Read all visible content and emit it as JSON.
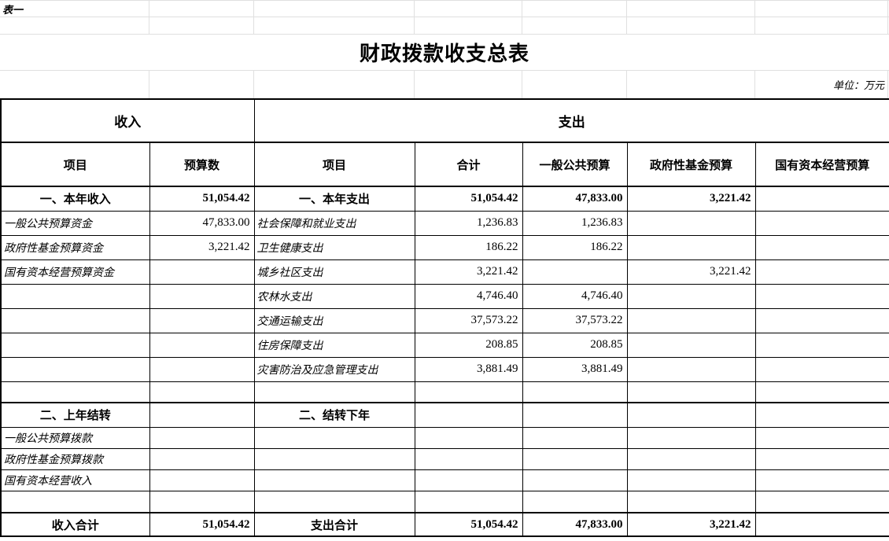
{
  "sheet": {
    "label": "表一",
    "title": "财政拨款收支总表",
    "unit_note": "单位：万元"
  },
  "table": {
    "group_headers": {
      "income": "收入",
      "expenditure": "支出"
    },
    "columns": [
      "项目",
      "预算数",
      "项目",
      "合计",
      "一般公共预算",
      "政府性基金预算",
      "国有资本经营预算"
    ],
    "rows": [
      {
        "type": "section",
        "income_item": "一、本年收入",
        "income_budget": "51,054.42",
        "expense_item": "一、本年支出",
        "total": "51,054.42",
        "general": "47,833.00",
        "fund": "3,221.42",
        "capital": ""
      },
      {
        "type": "detail",
        "income_item": "一般公共预算资金",
        "income_budget": "47,833.00",
        "expense_item": "社会保障和就业支出",
        "total": "1,236.83",
        "general": "1,236.83",
        "fund": "",
        "capital": ""
      },
      {
        "type": "detail",
        "income_item": "政府性基金预算资金",
        "income_budget": "3,221.42",
        "expense_item": "卫生健康支出",
        "total": "186.22",
        "general": "186.22",
        "fund": "",
        "capital": ""
      },
      {
        "type": "detail",
        "income_item": "国有资本经营预算资金",
        "income_budget": "",
        "expense_item": "城乡社区支出",
        "total": "3,221.42",
        "general": "",
        "fund": "3,221.42",
        "capital": ""
      },
      {
        "type": "detail",
        "income_item": "",
        "income_budget": "",
        "expense_item": "农林水支出",
        "total": "4,746.40",
        "general": "4,746.40",
        "fund": "",
        "capital": ""
      },
      {
        "type": "detail",
        "income_item": "",
        "income_budget": "",
        "expense_item": "交通运输支出",
        "total": "37,573.22",
        "general": "37,573.22",
        "fund": "",
        "capital": ""
      },
      {
        "type": "detail",
        "income_item": "",
        "income_budget": "",
        "expense_item": "住房保障支出",
        "total": "208.85",
        "general": "208.85",
        "fund": "",
        "capital": ""
      },
      {
        "type": "detail",
        "income_item": "",
        "income_budget": "",
        "expense_item": "灾害防治及应急管理支出",
        "total": "3,881.49",
        "general": "3,881.49",
        "fund": "",
        "capital": ""
      },
      {
        "type": "blank",
        "income_item": "",
        "income_budget": "",
        "expense_item": "",
        "total": "",
        "general": "",
        "fund": "",
        "capital": ""
      },
      {
        "type": "section",
        "income_item": "二、上年结转",
        "income_budget": "",
        "expense_item": "二、结转下年",
        "total": "",
        "general": "",
        "fund": "",
        "capital": ""
      },
      {
        "type": "detail-sm",
        "income_item": "一般公共预算拨款",
        "income_budget": "",
        "expense_item": "",
        "total": "",
        "general": "",
        "fund": "",
        "capital": ""
      },
      {
        "type": "detail-sm",
        "income_item": "政府性基金预算拨款",
        "income_budget": "",
        "expense_item": "",
        "total": "",
        "general": "",
        "fund": "",
        "capital": ""
      },
      {
        "type": "detail-sm",
        "income_item": "国有资本经营收入",
        "income_budget": "",
        "expense_item": "",
        "total": "",
        "general": "",
        "fund": "",
        "capital": ""
      },
      {
        "type": "blank-lg",
        "income_item": "",
        "income_budget": "",
        "expense_item": "",
        "total": "",
        "general": "",
        "fund": "",
        "capital": ""
      },
      {
        "type": "footer",
        "income_item": "收入合计",
        "income_budget": "51,054.42",
        "expense_item": "支出合计",
        "total": "51,054.42",
        "general": "47,833.00",
        "fund": "3,221.42",
        "capital": ""
      }
    ]
  },
  "colors": {
    "background": "#ffffff",
    "text": "#000000",
    "table_border": "#000000",
    "gridline": "#e0e0e0"
  }
}
